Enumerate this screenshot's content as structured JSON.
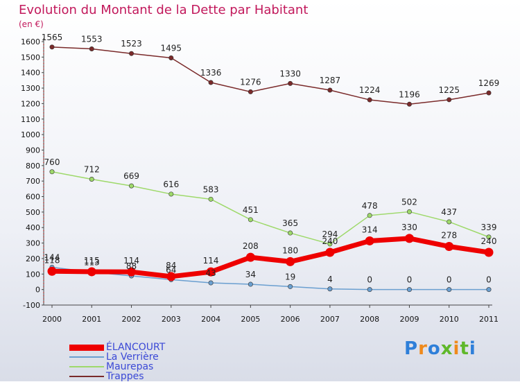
{
  "header": {
    "title": "Evolution du Montant de la Dette par Habitant",
    "unit": "(en €)"
  },
  "logo": {
    "text": "Proxiti",
    "colors": [
      "#2e7fd9",
      "#ef8a1c",
      "#2e7fd9",
      "#5fb82a",
      "#ef8a1c",
      "#5fb82a",
      "#2e7fd9"
    ]
  },
  "chart_data": {
    "type": "line",
    "title": "Evolution du Montant de la Dette par Habitant",
    "ylabel": "(en €)",
    "xlabel": "",
    "ylim": [
      -100,
      1600
    ],
    "yticks": [
      -100,
      0,
      100,
      200,
      300,
      400,
      500,
      600,
      700,
      800,
      900,
      1000,
      1100,
      1200,
      1300,
      1400,
      1500,
      1600
    ],
    "categories": [
      "2000",
      "2001",
      "2002",
      "2003",
      "2004",
      "2005",
      "2006",
      "2007",
      "2008",
      "2009",
      "2010",
      "2011"
    ],
    "grid": false,
    "legend_position": "bottom-left",
    "series": [
      {
        "name": "Trappes",
        "color": "#7a2a2a",
        "values": [
          1565,
          1553,
          1523,
          1495,
          1336,
          1276,
          1330,
          1287,
          1224,
          1196,
          1225,
          1269
        ]
      },
      {
        "name": "Maurepas",
        "color": "#9ed96a",
        "values": [
          760,
          712,
          669,
          616,
          583,
          451,
          365,
          294,
          478,
          502,
          437,
          339
        ]
      },
      {
        "name": "La Verrière",
        "color": "#6a9fd0",
        "values": [
          144,
          113,
          88,
          64,
          43,
          34,
          19,
          4,
          0,
          0,
          0,
          0
        ]
      },
      {
        "name": "ÉLANCOURT",
        "color": "#ee0000",
        "values": [
          118,
          115,
          114,
          84,
          114,
          208,
          180,
          240,
          314,
          330,
          278,
          240
        ]
      }
    ]
  }
}
